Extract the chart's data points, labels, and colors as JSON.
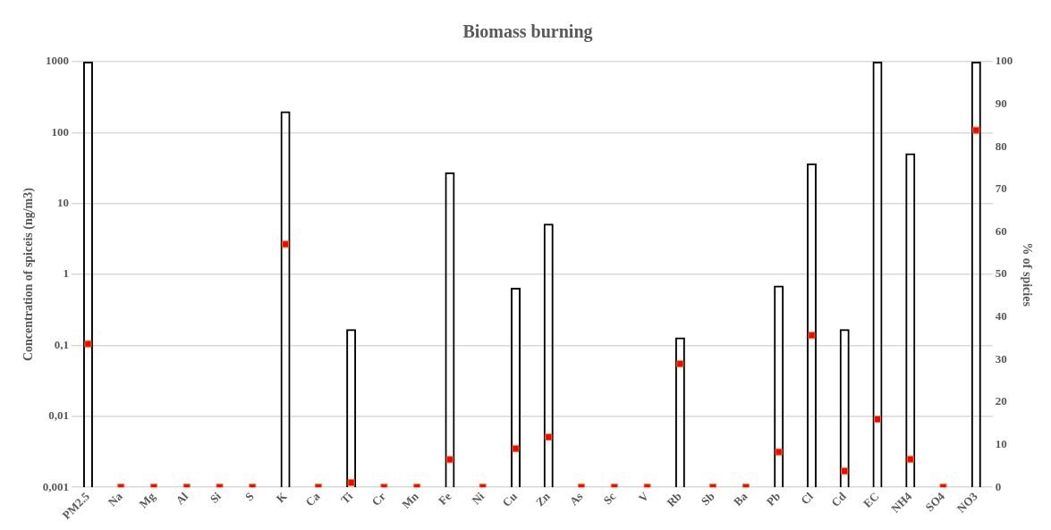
{
  "chart_data": {
    "type": "bar",
    "title": "Biomass burning",
    "ylabel": "Concentration of spiceis (ng/m3)",
    "y2label": "% of spicies",
    "categories": [
      "PM2.5",
      "Na",
      "Mg",
      "Al",
      "Si",
      "S",
      "K",
      "Ca",
      "Ti",
      "Cr",
      "Mn",
      "Fe",
      "Ni",
      "Cu",
      "Zn",
      "As",
      "Sc",
      "V",
      "Rb",
      "Sb",
      "Ba",
      "Pb",
      "Cl",
      "Cd",
      "EC",
      "NH4",
      "SO4",
      "NO3"
    ],
    "series": [
      {
        "color": "#000000",
        "values": [
          1000,
          null,
          null,
          null,
          null,
          null,
          200,
          null,
          0.17,
          null,
          null,
          27.5,
          null,
          0.65,
          5.2,
          null,
          null,
          null,
          0.13,
          null,
          null,
          0.7,
          37,
          0.17,
          1000,
          51,
          null,
          1000
        ]
      },
      {
        "type": "scatter",
        "axis": "y2",
        "color": "#ff0000",
        "values": [
          33.7,
          0,
          0,
          0,
          0,
          0,
          57.1,
          0,
          1.1,
          0,
          0,
          6.5,
          0,
          9.1,
          11.8,
          0,
          0,
          0,
          29,
          0,
          0,
          8.3,
          35.7,
          3.8,
          16,
          6.6,
          0,
          83.9
        ]
      }
    ],
    "log": "y",
    "ylim": [
      0.001,
      1000
    ],
    "yticks": [
      {
        "value": 0.001,
        "label": "0,001"
      },
      {
        "value": 0.01,
        "label": "0,01"
      },
      {
        "value": 0.1,
        "label": "0,1"
      },
      1,
      10,
      100,
      1000
    ],
    "y2lim": [
      0,
      100
    ],
    "y2ticks": [
      0,
      10,
      20,
      30,
      40,
      50,
      60,
      70,
      80,
      90,
      100
    ],
    "grid": "y",
    "marker": "square",
    "legend": false
  }
}
